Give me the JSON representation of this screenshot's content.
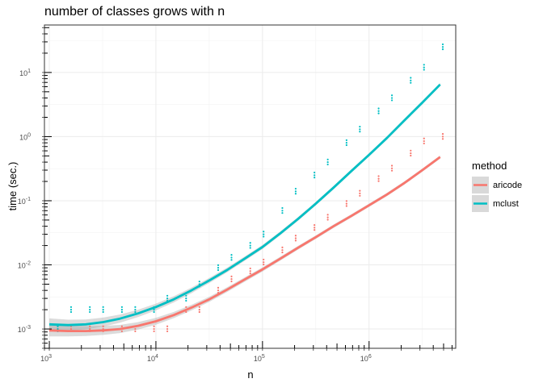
{
  "chart_data": {
    "type": "scatter",
    "title": "number of classes grows with n",
    "xlabel": "n",
    "ylabel": "time (sec.)",
    "x_scale": "log10",
    "y_scale": "log10",
    "xlim": [
      900,
      6500000
    ],
    "ylim": [
      0.0005,
      55
    ],
    "x_ticks": [
      {
        "value": 1000,
        "base": "10",
        "exp": "3"
      },
      {
        "value": 10000,
        "base": "10",
        "exp": "4"
      },
      {
        "value": 100000,
        "base": "10",
        "exp": "5"
      },
      {
        "value": 1000000,
        "base": "10",
        "exp": "6"
      }
    ],
    "y_ticks": [
      {
        "value": 0.001,
        "base": "10",
        "exp": "-3"
      },
      {
        "value": 0.01,
        "base": "10",
        "exp": "-2"
      },
      {
        "value": 0.1,
        "base": "10",
        "exp": "-1"
      },
      {
        "value": 1,
        "base": "10",
        "exp": "0"
      },
      {
        "value": 10,
        "base": "10",
        "exp": "1"
      }
    ],
    "grid": true,
    "legend_title": "method",
    "legend_position": "right",
    "series": [
      {
        "name": "aricode",
        "color": "#F8766D",
        "x": [
          1200,
          1600,
          2400,
          3200,
          4800,
          6400,
          9600,
          12800,
          19200,
          25600,
          38400,
          51200,
          76800,
          102400,
          153600,
          204800,
          307200,
          409600,
          614400,
          819200,
          1228800,
          1638400,
          2457600,
          3276800,
          4915200
        ],
        "y": [
          0.001,
          0.001,
          0.001,
          0.001,
          0.001,
          0.001,
          0.001,
          0.001,
          0.002,
          0.002,
          0.004,
          0.006,
          0.008,
          0.011,
          0.017,
          0.026,
          0.038,
          0.055,
          0.09,
          0.13,
          0.22,
          0.32,
          0.55,
          0.85,
          1.0
        ],
        "smooth_x": [
          1000,
          1500,
          2200,
          3200,
          4600,
          6800,
          10000,
          14700,
          21500,
          31600,
          46400,
          68100,
          100000,
          146800,
          215400,
          316200,
          464200,
          681300,
          1000000,
          1467800,
          2154400,
          3162300,
          4641600
        ],
        "smooth_y": [
          0.00095,
          0.00093,
          0.00093,
          0.00095,
          0.001,
          0.00112,
          0.00132,
          0.00165,
          0.00215,
          0.0029,
          0.0041,
          0.0059,
          0.0085,
          0.0125,
          0.0185,
          0.027,
          0.04,
          0.058,
          0.085,
          0.125,
          0.19,
          0.3,
          0.48
        ]
      },
      {
        "name": "mclust",
        "color": "#00BFC4",
        "x": [
          1200,
          1600,
          2400,
          3200,
          4800,
          6400,
          9600,
          12800,
          19200,
          25600,
          38400,
          51200,
          76800,
          102400,
          153600,
          204800,
          307200,
          409600,
          614400,
          819200,
          1228800,
          1638400,
          2457600,
          3276800,
          4915200
        ],
        "y": [
          0.001,
          0.002,
          0.002,
          0.002,
          0.002,
          0.002,
          0.002,
          0.003,
          0.003,
          0.005,
          0.009,
          0.013,
          0.02,
          0.03,
          0.07,
          0.14,
          0.25,
          0.4,
          0.8,
          1.3,
          2.5,
          4.0,
          7.5,
          12.0,
          25.0
        ],
        "smooth_x": [
          1000,
          1500,
          2200,
          3200,
          4600,
          6800,
          10000,
          14700,
          21500,
          31600,
          46400,
          68100,
          100000,
          146800,
          215400,
          316200,
          464200,
          681300,
          1000000,
          1467800,
          2154400,
          3162300,
          4641600
        ],
        "smooth_y": [
          0.00118,
          0.00115,
          0.00118,
          0.00128,
          0.00145,
          0.00175,
          0.0022,
          0.0029,
          0.004,
          0.0057,
          0.0083,
          0.0125,
          0.019,
          0.031,
          0.052,
          0.09,
          0.16,
          0.29,
          0.52,
          0.95,
          1.8,
          3.4,
          6.5
        ]
      }
    ]
  }
}
